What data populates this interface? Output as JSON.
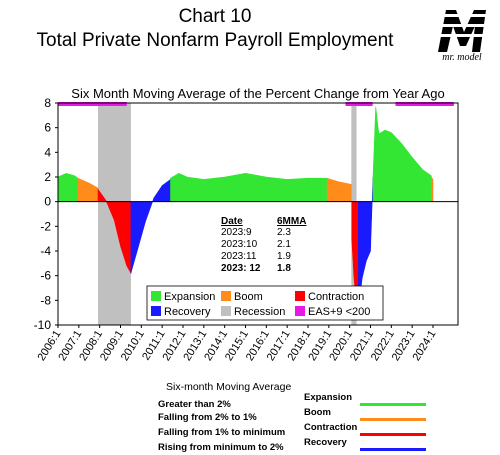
{
  "header": {
    "line1": "Chart 10",
    "line2": "Total Private Nonfarm Payroll Employment",
    "subtitle": "Six Month Moving Average of the Percent Change from Year Ago",
    "logo_letter": "M",
    "logo_text": "mr. model"
  },
  "colors": {
    "expansion": "#33e633",
    "boom": "#ff8c1a",
    "contraction": "#ff0000",
    "recovery": "#1a1aff",
    "recession": "#c0c0c0",
    "eas": "#e619e6"
  },
  "chart_data": {
    "type": "area",
    "ylim": [
      -10,
      8
    ],
    "yticks": [
      8,
      6,
      4,
      2,
      0,
      -2,
      -4,
      -6,
      -8,
      -10
    ],
    "xlim": [
      2006.0,
      2025.2
    ],
    "xticks": [
      "2006:1",
      "2007:1",
      "2008:1",
      "2009:1",
      "2010:1",
      "2011:1",
      "2012:1",
      "2013:1",
      "2014:1",
      "2015:1",
      "2016:1",
      "2017:1",
      "2018:1",
      "2019:1",
      "2020:1",
      "2021:1",
      "2022:1",
      "2023:1",
      "2024:1"
    ],
    "legend": [
      {
        "key": "expansion",
        "label": "Expansion"
      },
      {
        "key": "boom",
        "label": "Boom"
      },
      {
        "key": "contraction",
        "label": "Contraction"
      },
      {
        "key": "recovery",
        "label": "Recovery"
      },
      {
        "key": "recession",
        "label": "Recession"
      },
      {
        "key": "eas",
        "label": "EAS+9 <200"
      }
    ],
    "recessions": [
      [
        2007.92,
        2009.5
      ],
      [
        2020.08,
        2020.33
      ]
    ],
    "eas_bars": [
      [
        2006.0,
        2009.3
      ],
      [
        2019.8,
        2021.1
      ],
      [
        2022.2,
        2025.0
      ]
    ],
    "series": [
      {
        "phase": "expansion",
        "points": [
          [
            2006.0,
            2.0
          ],
          [
            2006.4,
            2.3
          ],
          [
            2006.8,
            2.1
          ],
          [
            2006.96,
            1.9
          ]
        ]
      },
      {
        "phase": "boom",
        "points": [
          [
            2006.96,
            1.9
          ],
          [
            2007.5,
            1.5
          ],
          [
            2007.92,
            1.1
          ]
        ]
      },
      {
        "phase": "contraction",
        "points": [
          [
            2007.92,
            1.0
          ],
          [
            2008.3,
            0.1
          ],
          [
            2008.7,
            -1.5
          ],
          [
            2009.0,
            -3.6
          ],
          [
            2009.3,
            -5.2
          ],
          [
            2009.5,
            -5.8
          ]
        ]
      },
      {
        "phase": "recovery",
        "points": [
          [
            2009.5,
            -5.8
          ],
          [
            2009.8,
            -4.0
          ],
          [
            2010.2,
            -1.6
          ],
          [
            2010.6,
            0.3
          ],
          [
            2011.0,
            1.3
          ],
          [
            2011.4,
            1.8
          ]
        ]
      },
      {
        "phase": "expansion",
        "points": [
          [
            2011.4,
            1.9
          ],
          [
            2011.8,
            2.3
          ],
          [
            2012.2,
            2.0
          ],
          [
            2013.0,
            1.8
          ],
          [
            2014.0,
            2.0
          ],
          [
            2015.0,
            2.3
          ],
          [
            2016.0,
            2.0
          ],
          [
            2017.0,
            1.8
          ],
          [
            2018.0,
            1.9
          ],
          [
            2018.92,
            1.9
          ]
        ]
      },
      {
        "phase": "boom",
        "points": [
          [
            2018.92,
            1.9
          ],
          [
            2019.5,
            1.6
          ],
          [
            2020.08,
            1.4
          ]
        ]
      },
      {
        "phase": "contraction",
        "points": [
          [
            2020.1,
            -3.0
          ],
          [
            2020.2,
            -6.0
          ],
          [
            2020.3,
            -8.0
          ],
          [
            2020.42,
            -8.8
          ]
        ]
      },
      {
        "phase": "recovery",
        "points": [
          [
            2020.42,
            -8.8
          ],
          [
            2020.6,
            -6.2
          ],
          [
            2020.8,
            -4.8
          ],
          [
            2021.0,
            -4.0
          ],
          [
            2021.12,
            2.0
          ]
        ]
      },
      {
        "phase": "expansion",
        "points": [
          [
            2021.12,
            2.0
          ],
          [
            2021.25,
            7.7
          ],
          [
            2021.4,
            5.5
          ],
          [
            2021.7,
            5.8
          ],
          [
            2022.0,
            5.6
          ],
          [
            2022.5,
            4.7
          ],
          [
            2023.0,
            3.6
          ],
          [
            2023.5,
            2.6
          ],
          [
            2023.92,
            2.1
          ]
        ]
      },
      {
        "phase": "boom",
        "points": [
          [
            2023.92,
            2.0
          ],
          [
            2024.0,
            1.8
          ]
        ]
      }
    ],
    "table": {
      "header": [
        "Date",
        "6MMA"
      ],
      "rows": [
        [
          "2023:9",
          "2.3"
        ],
        [
          "2023:10",
          "2.1"
        ],
        [
          "2023:11",
          "1.9"
        ],
        [
          "2023: 12",
          "1.8"
        ]
      ]
    }
  },
  "bottom_legend": {
    "title": "Six-month Moving Average",
    "rows": [
      {
        "desc": "Greater than 2%",
        "name": "Expansion",
        "key": "expansion"
      },
      {
        "desc": "Falling from 2% to 1%",
        "name": "Boom",
        "key": "boom"
      },
      {
        "desc": "Falling from 1% to minimum",
        "name": "Contraction",
        "key": "contraction"
      },
      {
        "desc": "Rising from minimum to 2%",
        "name": "Recovery",
        "key": "recovery"
      }
    ]
  }
}
